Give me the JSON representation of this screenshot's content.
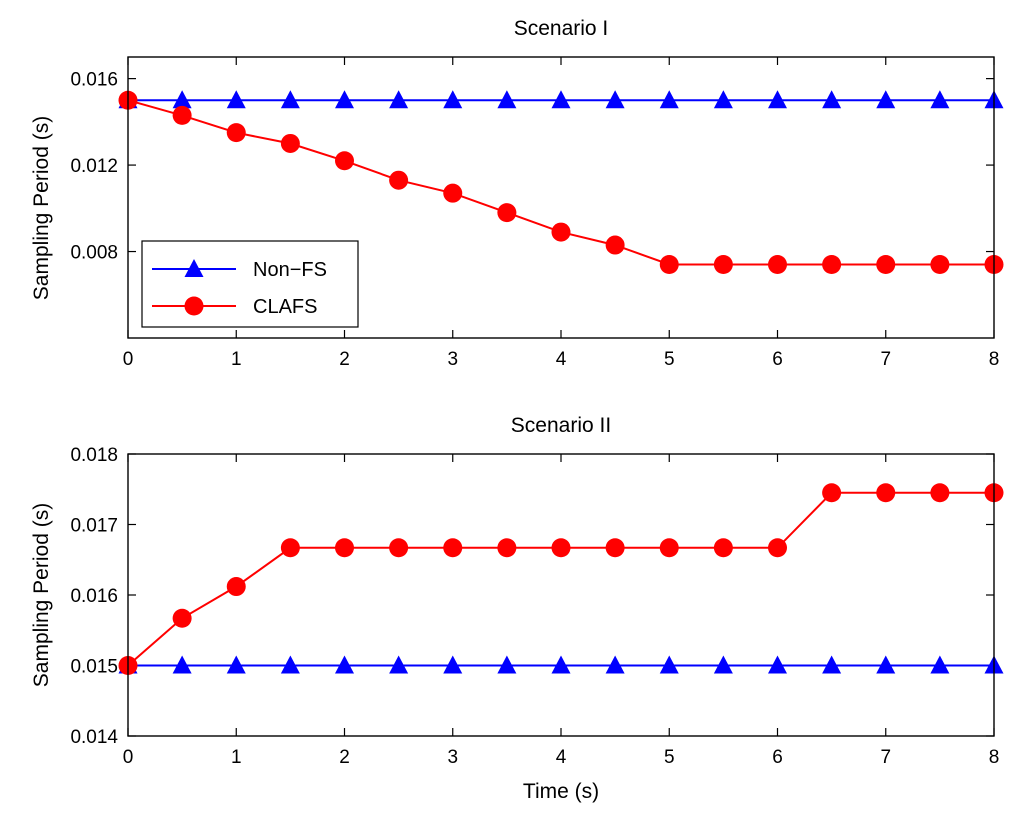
{
  "chart_data": [
    {
      "type": "line",
      "title": "Scenario I",
      "xlabel": "",
      "ylabel": "Sampling Period (s)",
      "xlim": [
        0,
        8
      ],
      "ylim": [
        0.004,
        0.017
      ],
      "xticks": [
        "0",
        "1",
        "2",
        "3",
        "4",
        "5",
        "6",
        "7",
        "8"
      ],
      "yticks": [
        "0.008",
        "0.012",
        "0.016"
      ],
      "x": [
        0,
        0.5,
        1,
        1.5,
        2,
        2.5,
        3,
        3.5,
        4,
        4.5,
        5,
        5.5,
        6,
        6.5,
        7,
        7.5,
        8
      ],
      "series": [
        {
          "name": "Non−FS",
          "color": "#0000ff",
          "marker": "triangle",
          "values": [
            0.015,
            0.015,
            0.015,
            0.015,
            0.015,
            0.015,
            0.015,
            0.015,
            0.015,
            0.015,
            0.015,
            0.015,
            0.015,
            0.015,
            0.015,
            0.015,
            0.015
          ]
        },
        {
          "name": "CLAFS",
          "color": "#ff0000",
          "marker": "circle",
          "values": [
            0.015,
            0.0143,
            0.0135,
            0.013,
            0.0122,
            0.0113,
            0.0107,
            0.0098,
            0.0089,
            0.0083,
            0.0074,
            0.0074,
            0.0074,
            0.0074,
            0.0074,
            0.0074,
            0.0074
          ]
        }
      ],
      "legend": "bottom-left"
    },
    {
      "type": "line",
      "title": "Scenario II",
      "xlabel": "Time (s)",
      "ylabel": "Sampling Period (s)",
      "xlim": [
        0,
        8
      ],
      "ylim": [
        0.014,
        0.018
      ],
      "xticks": [
        "0",
        "1",
        "2",
        "3",
        "4",
        "5",
        "6",
        "7",
        "8"
      ],
      "yticks": [
        "0.014",
        "0.015",
        "0.016",
        "0.017",
        "0.018"
      ],
      "x": [
        0,
        0.5,
        1,
        1.5,
        2,
        2.5,
        3,
        3.5,
        4,
        4.5,
        5,
        5.5,
        6,
        6.5,
        7,
        7.5,
        8
      ],
      "series": [
        {
          "name": "Non−FS",
          "color": "#0000ff",
          "marker": "triangle",
          "values": [
            0.015,
            0.015,
            0.015,
            0.015,
            0.015,
            0.015,
            0.015,
            0.015,
            0.015,
            0.015,
            0.015,
            0.015,
            0.015,
            0.015,
            0.015,
            0.015,
            0.015
          ]
        },
        {
          "name": "CLAFS",
          "color": "#ff0000",
          "marker": "circle",
          "values": [
            0.015,
            0.01567,
            0.01612,
            0.01667,
            0.01667,
            0.01667,
            0.01667,
            0.01667,
            0.01667,
            0.01667,
            0.01667,
            0.01667,
            0.01667,
            0.01745,
            0.01745,
            0.01745,
            0.01745
          ]
        }
      ]
    }
  ]
}
